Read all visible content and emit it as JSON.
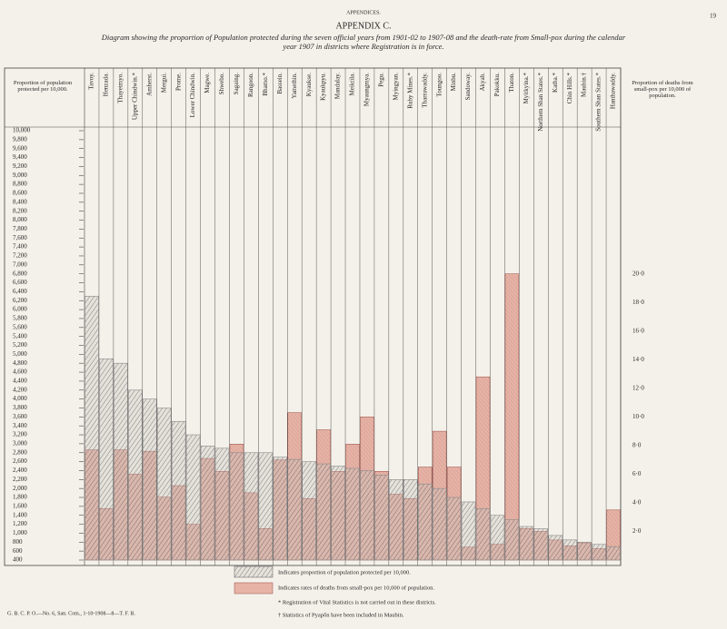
{
  "header": {
    "section": "APPENDICES.",
    "page": "19",
    "appendix": "APPENDIX C."
  },
  "chart_data": {
    "type": "bar",
    "title": "Diagram showing the proportion of Population protected during the seven official years from 1901-02 to 1907-08 and the death-rate from Small-pox during the calendar year 1907 in districts where Registration is in force.",
    "ylabel": "Proportion of population protected per 10,000.",
    "y2label": "Proportion of deaths from small-pox per 10,000 of population.",
    "categories": [
      "Tavoy.",
      "Henzada.",
      "Thayetmyo.",
      "Upper Chindwin.*",
      "Amherst.",
      "Mergui.",
      "Prome.",
      "Lower Chindwin.",
      "Magwe.",
      "Shwebo.",
      "Sagaing.",
      "Rangoon.",
      "Bhamo.*",
      "Bassein.",
      "Yamethin.",
      "Kyaukse.",
      "Kyaukpyu.",
      "Mandalay.",
      "Meiktila.",
      "Myaungmya.",
      "Pegu.",
      "Myingyan.",
      "Ruby Mines.*",
      "Tharrawaddy.",
      "Toungoo.",
      "Minbu.",
      "Sandoway.",
      "Akyab.",
      "Pakokku.",
      "Thaton.",
      "Myitkyina.*",
      "Northern Shan States.*",
      "Katha.*",
      "Chin Hills.*",
      "Maubin.†",
      "Southern Shan States.*",
      "Hanthawaddy."
    ],
    "series": [
      {
        "name": "Indicates proportion of population protected per 10,000.",
        "color": "#8a8a8a",
        "values": [
          6300,
          4900,
          4800,
          4200,
          4000,
          3800,
          3500,
          3200,
          2950,
          2900,
          2800,
          2800,
          2800,
          2700,
          2650,
          2600,
          2550,
          2500,
          2450,
          2400,
          2300,
          2200,
          2200,
          2100,
          2000,
          1800,
          1700,
          1550,
          1400,
          1300,
          1150,
          1100,
          950,
          850,
          800,
          750,
          700
        ]
      },
      {
        "name": "Indicates rates of deaths from small-pox per 10,000 of population.",
        "color": "#e6b3a6",
        "axis": "y2",
        "values": [
          7.7,
          3.6,
          7.7,
          6.0,
          7.6,
          4.4,
          5.2,
          2.5,
          7.1,
          6.2,
          8.1,
          4.7,
          2.2,
          7.0,
          10.3,
          4.3,
          9.1,
          6.2,
          8.1,
          10.0,
          6.2,
          4.6,
          4.3,
          6.5,
          9.0,
          6.5,
          0.9,
          12.8,
          1.1,
          20.0,
          2.2,
          2.0,
          1.4,
          1.0,
          1.2,
          0.8,
          3.5
        ]
      }
    ],
    "ylim": [
      400,
      10000
    ],
    "yticks": [
      {
        "value": 10000,
        "label": "10,000"
      },
      {
        "value": 9800,
        "label": "9,800"
      },
      {
        "value": 9600,
        "label": "9,600"
      },
      {
        "value": 9400,
        "label": "9,400"
      },
      {
        "value": 9200,
        "label": "9,200"
      },
      {
        "value": 9000,
        "label": "9,000"
      },
      {
        "value": 8800,
        "label": "8,800"
      },
      {
        "value": 8600,
        "label": "8,600"
      },
      {
        "value": 8400,
        "label": "8,400"
      },
      {
        "value": 8200,
        "label": "8,200"
      },
      {
        "value": 8000,
        "label": "8,000"
      },
      {
        "value": 7800,
        "label": "7,800"
      },
      {
        "value": 7600,
        "label": "7,600"
      },
      {
        "value": 7400,
        "label": "7,400"
      },
      {
        "value": 7200,
        "label": "7,200"
      },
      {
        "value": 7000,
        "label": "7,000"
      },
      {
        "value": 6800,
        "label": "6,800"
      },
      {
        "value": 6600,
        "label": "6,600"
      },
      {
        "value": 6400,
        "label": "6,400"
      },
      {
        "value": 6200,
        "label": "6,200"
      },
      {
        "value": 6000,
        "label": "6,000"
      },
      {
        "value": 5800,
        "label": "5,800"
      },
      {
        "value": 5600,
        "label": "5,600"
      },
      {
        "value": 5400,
        "label": "5,400"
      },
      {
        "value": 5200,
        "label": "5,200"
      },
      {
        "value": 5000,
        "label": "5,000"
      },
      {
        "value": 4800,
        "label": "4,800"
      },
      {
        "value": 4600,
        "label": "4,600"
      },
      {
        "value": 4400,
        "label": "4,400"
      },
      {
        "value": 4200,
        "label": "4,200"
      },
      {
        "value": 4000,
        "label": "4,000"
      },
      {
        "value": 3800,
        "label": "3,800"
      },
      {
        "value": 3600,
        "label": "3,600"
      },
      {
        "value": 3400,
        "label": "3,400"
      },
      {
        "value": 3200,
        "label": "3,200"
      },
      {
        "value": 3000,
        "label": "3,000"
      },
      {
        "value": 2800,
        "label": "2,800"
      },
      {
        "value": 2600,
        "label": "2,600"
      },
      {
        "value": 2400,
        "label": "2,400"
      },
      {
        "value": 2200,
        "label": "2,200"
      },
      {
        "value": 2000,
        "label": "2,000"
      },
      {
        "value": 1800,
        "label": "1,800"
      },
      {
        "value": 1600,
        "label": "1,600"
      },
      {
        "value": 1400,
        "label": "1,400"
      },
      {
        "value": 1200,
        "label": "1,200"
      },
      {
        "value": 1000,
        "label": "1,000"
      },
      {
        "value": 800,
        "label": "800"
      },
      {
        "value": 600,
        "label": "600"
      },
      {
        "value": 400,
        "label": "400"
      }
    ],
    "y2lim": [
      0,
      30
    ],
    "y2ticks": [
      {
        "value": 20,
        "label": "20·0"
      },
      {
        "value": 18,
        "label": "18·0"
      },
      {
        "value": 16,
        "label": "16·0"
      },
      {
        "value": 14,
        "label": "14·0"
      },
      {
        "value": 12,
        "label": "12·0"
      },
      {
        "value": 10,
        "label": "10·0"
      },
      {
        "value": 8,
        "label": "8·0"
      },
      {
        "value": 6,
        "label": "6·0"
      },
      {
        "value": 4,
        "label": "4·0"
      },
      {
        "value": 2,
        "label": "2·0"
      }
    ],
    "grid": true
  },
  "footnotes": [
    "* Registration of Vital Statistics is not carried out in these districts.",
    "† Statistics of Pyapôn have been included in Maubin."
  ],
  "imprint": "G. B. C. P. O.—No. 6, San. Com., 1-10-1908—8—T. F. B."
}
